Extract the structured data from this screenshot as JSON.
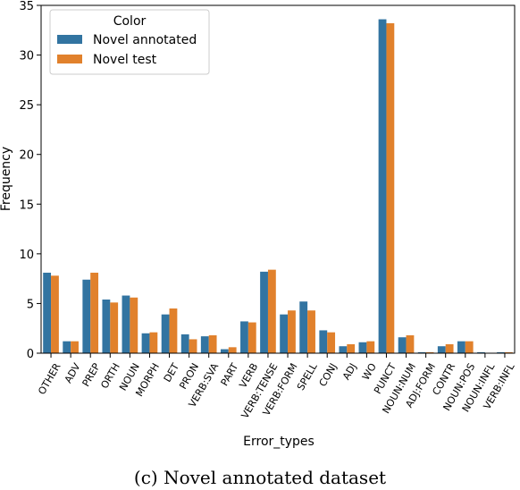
{
  "chart_data": {
    "type": "bar",
    "xlabel": "Error_types",
    "ylabel": "Frequency",
    "ylim": [
      0,
      35
    ],
    "yticks": [
      0,
      5,
      10,
      15,
      20,
      25,
      30,
      35
    ],
    "categories": [
      "OTHER",
      "ADV",
      "PREP",
      "ORTH",
      "NOUN",
      "MORPH",
      "DET",
      "PRON",
      "VERB:SVA",
      "PART",
      "VERB",
      "VERB:TENSE",
      "VERB:FORM",
      "SPELL",
      "CONJ",
      "ADJ",
      "WO",
      "PUNCT",
      "NOUN:NUM",
      "ADJ:FORM",
      "CONTR",
      "NOUN:POS",
      "NOUN:INFL",
      "VERB:INFL"
    ],
    "series": [
      {
        "name": "Novel annotated",
        "color": "#3274a1",
        "values": [
          8.1,
          1.2,
          7.4,
          5.4,
          5.8,
          2.0,
          3.9,
          1.9,
          1.7,
          0.4,
          3.2,
          8.2,
          3.9,
          5.2,
          2.3,
          0.7,
          1.1,
          33.6,
          1.6,
          0.1,
          0.7,
          1.2,
          0.1,
          0.1
        ]
      },
      {
        "name": "Novel test",
        "color": "#e1812c",
        "values": [
          7.8,
          1.2,
          8.1,
          5.1,
          5.6,
          2.1,
          4.5,
          1.4,
          1.8,
          0.6,
          3.1,
          8.4,
          4.3,
          4.3,
          2.1,
          0.9,
          1.2,
          33.2,
          1.8,
          0.1,
          0.9,
          1.2,
          0.0,
          0.1
        ]
      }
    ],
    "legend": {
      "title": "Color",
      "position": "top-left"
    },
    "grid": false
  },
  "caption": "(c) Novel annotated dataset"
}
